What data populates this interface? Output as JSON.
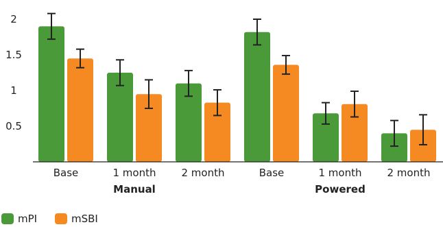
{
  "chart_data": {
    "type": "bar",
    "categories": [
      "Base",
      "1 month",
      "2 month",
      "Base",
      "1 month",
      "2 month"
    ],
    "groups": [
      {
        "label": "Manual",
        "categories": [
          0,
          1,
          2
        ]
      },
      {
        "label": "Powered",
        "categories": [
          3,
          4,
          5
        ]
      }
    ],
    "series": [
      {
        "name": "mPI",
        "color": "#4a9a3a",
        "values": [
          1.9,
          1.25,
          1.1,
          1.82,
          0.68,
          0.4
        ],
        "errors": [
          0.18,
          0.18,
          0.18,
          0.18,
          0.15,
          0.18
        ]
      },
      {
        "name": "mSBI",
        "color": "#f58a23",
        "values": [
          1.45,
          0.95,
          0.83,
          1.36,
          0.81,
          0.45
        ],
        "errors": [
          0.13,
          0.2,
          0.18,
          0.13,
          0.18,
          0.21
        ]
      }
    ],
    "yticks": [
      "2",
      "1.5",
      "1",
      "0.5"
    ],
    "ytick_values": [
      2,
      1.5,
      1,
      0.5
    ],
    "ylim": [
      0,
      2.2
    ],
    "grid": false,
    "legend_position": "bottom-left",
    "title": "",
    "xlabel": "",
    "ylabel": ""
  }
}
